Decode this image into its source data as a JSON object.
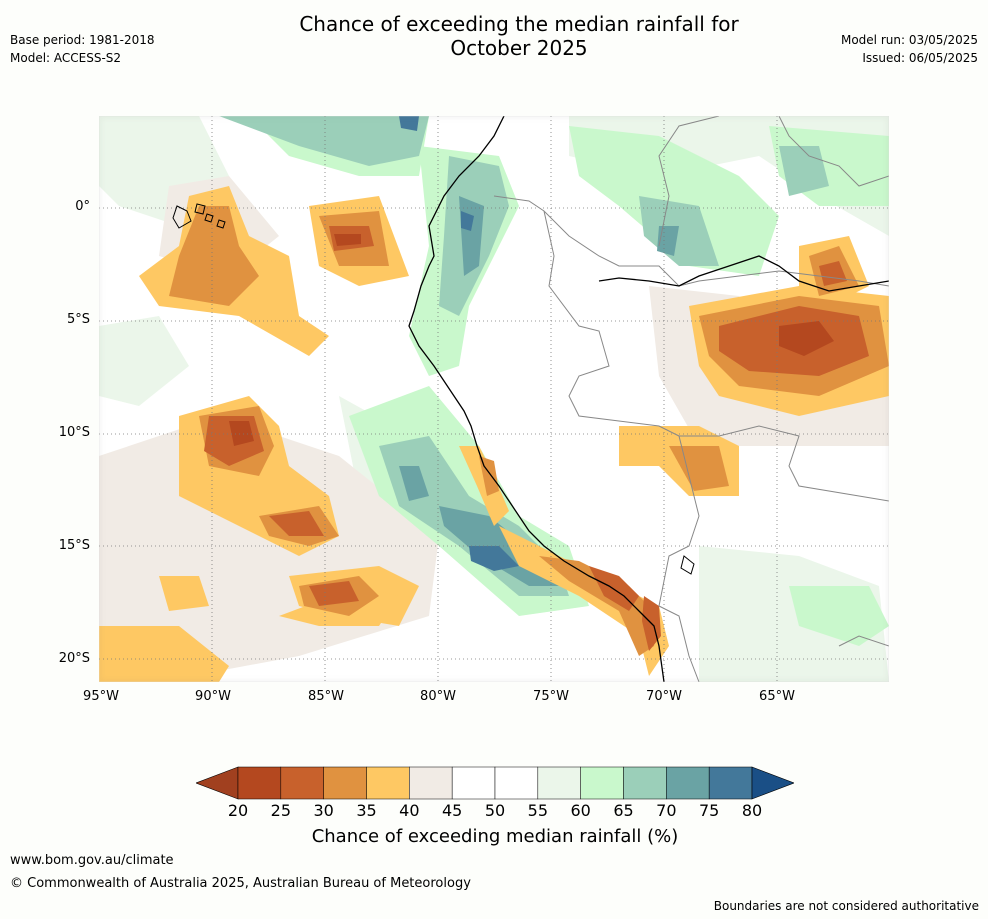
{
  "header": {
    "title_line1": "Chance of exceeding the median rainfall for",
    "title_line2": "October 2025",
    "base_period": "Base period: 1981-2018",
    "model": "Model: ACCESS-S2",
    "model_run": "Model run: 03/05/2025",
    "issued": "Issued: 06/05/2025"
  },
  "map": {
    "region": "Western South America and adjacent Pacific",
    "lon_labels": [
      "95°W",
      "90°W",
      "85°W",
      "80°W",
      "75°W",
      "70°W",
      "65°W"
    ],
    "lat_labels": [
      "0°",
      "5°S",
      "10°S",
      "15°S",
      "20°S"
    ],
    "lon_range": [
      -95,
      -60
    ],
    "lat_range": [
      4,
      -21
    ],
    "grid": "dotted"
  },
  "colorbar": {
    "title": "Chance of exceeding median rainfall (%)",
    "labels": [
      "20",
      "25",
      "30",
      "35",
      "40",
      "45",
      "50",
      "55",
      "60",
      "65",
      "70",
      "75",
      "80"
    ],
    "colors": [
      "#a1401f",
      "#b4481f",
      "#c8612c",
      "#e09240",
      "#fec863",
      "#f1ebe5",
      "#ffffff",
      "#ffffff",
      "#ebf6ea",
      "#c9f8cc",
      "#9bcfb9",
      "#6aa3a4",
      "#43789a",
      "#1a4f86"
    ],
    "extend": "both"
  },
  "footer": {
    "website": "www.bom.gov.au/climate",
    "copyright": "© Commonwealth of Australia 2025, Australian Bureau of Meteorology",
    "disclaimer": "Boundaries are not considered authoritative"
  }
}
